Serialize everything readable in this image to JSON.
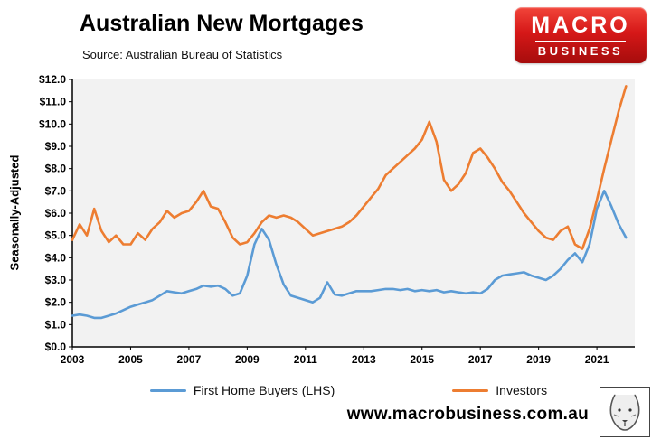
{
  "header": {
    "title": "Australian New Mortgages",
    "subtitle": "Source: Australian Bureau of Statistics"
  },
  "logo": {
    "line1": "MACRO",
    "line2": "BUSINESS"
  },
  "footer": {
    "url": "www.macrobusiness.com.au"
  },
  "legend": {
    "items": [
      {
        "label": "First Home Buyers (LHS)",
        "color": "#5b9bd5"
      },
      {
        "label": "Investors",
        "color": "#ed7d31"
      }
    ]
  },
  "chart_data": {
    "type": "line",
    "title": "Australian New Mortgages",
    "subtitle": "Source: Australian Bureau of Statistics",
    "xlabel": "",
    "ylabel": "Seasonally-Adjusted",
    "ylim": [
      0,
      12
    ],
    "xlim": [
      2003,
      2022.3
    ],
    "grid": false,
    "legend_position": "bottom",
    "plot_bg": "#f2f2f2",
    "y_tick_step": 1,
    "y_ticks": [
      "$0.0",
      "$1.0",
      "$2.0",
      "$3.0",
      "$4.0",
      "$5.0",
      "$6.0",
      "$7.0",
      "$8.0",
      "$9.0",
      "$10.0",
      "$11.0",
      "$12.0"
    ],
    "x_ticks": [
      2003,
      2005,
      2007,
      2009,
      2011,
      2013,
      2015,
      2017,
      2019,
      2021
    ],
    "x": [
      2003,
      2003.25,
      2003.5,
      2003.75,
      2004,
      2004.25,
      2004.5,
      2004.75,
      2005,
      2005.25,
      2005.5,
      2005.75,
      2006,
      2006.25,
      2006.5,
      2006.75,
      2007,
      2007.25,
      2007.5,
      2007.75,
      2008,
      2008.25,
      2008.5,
      2008.75,
      2009,
      2009.25,
      2009.5,
      2009.75,
      2010,
      2010.25,
      2010.5,
      2010.75,
      2011,
      2011.25,
      2011.5,
      2011.75,
      2012,
      2012.25,
      2012.5,
      2012.75,
      2013,
      2013.25,
      2013.5,
      2013.75,
      2014,
      2014.25,
      2014.5,
      2014.75,
      2015,
      2015.25,
      2015.5,
      2015.75,
      2016,
      2016.25,
      2016.5,
      2016.75,
      2017,
      2017.25,
      2017.5,
      2017.75,
      2018,
      2018.25,
      2018.5,
      2018.75,
      2019,
      2019.25,
      2019.5,
      2019.75,
      2020,
      2020.25,
      2020.5,
      2020.75,
      2021,
      2021.25,
      2021.5,
      2021.75,
      2022
    ],
    "series": [
      {
        "name": "First Home Buyers (LHS)",
        "color": "#5b9bd5",
        "values": [
          1.4,
          1.45,
          1.4,
          1.3,
          1.3,
          1.4,
          1.5,
          1.65,
          1.8,
          1.9,
          2.0,
          2.1,
          2.3,
          2.5,
          2.45,
          2.4,
          2.5,
          2.6,
          2.75,
          2.7,
          2.75,
          2.6,
          2.3,
          2.4,
          3.2,
          4.6,
          5.3,
          4.8,
          3.7,
          2.8,
          2.3,
          2.2,
          2.1,
          2.0,
          2.2,
          2.9,
          2.35,
          2.3,
          2.4,
          2.5,
          2.5,
          2.5,
          2.55,
          2.6,
          2.6,
          2.55,
          2.6,
          2.5,
          2.55,
          2.5,
          2.55,
          2.45,
          2.5,
          2.45,
          2.4,
          2.45,
          2.4,
          2.6,
          3.0,
          3.2,
          3.25,
          3.3,
          3.35,
          3.2,
          3.1,
          3.0,
          3.2,
          3.5,
          3.9,
          4.2,
          3.8,
          4.6,
          6.2,
          7.0,
          6.3,
          5.5,
          4.9
        ]
      },
      {
        "name": "Investors",
        "color": "#ed7d31",
        "values": [
          4.8,
          5.5,
          5.0,
          6.2,
          5.2,
          4.7,
          5.0,
          4.6,
          4.6,
          5.1,
          4.8,
          5.3,
          5.6,
          6.1,
          5.8,
          6.0,
          6.1,
          6.5,
          7.0,
          6.3,
          6.2,
          5.6,
          4.9,
          4.6,
          4.7,
          5.1,
          5.6,
          5.9,
          5.8,
          5.9,
          5.8,
          5.6,
          5.3,
          5.0,
          5.1,
          5.2,
          5.3,
          5.4,
          5.6,
          5.9,
          6.3,
          6.7,
          7.1,
          7.7,
          8.0,
          8.3,
          8.6,
          8.9,
          9.3,
          10.1,
          9.2,
          7.5,
          7.0,
          7.3,
          7.8,
          8.7,
          8.9,
          8.5,
          8.0,
          7.4,
          7.0,
          6.5,
          6.0,
          5.6,
          5.2,
          4.9,
          4.8,
          5.2,
          5.4,
          4.6,
          4.4,
          5.3,
          6.6,
          8.0,
          9.3,
          10.6,
          11.7
        ]
      }
    ]
  }
}
